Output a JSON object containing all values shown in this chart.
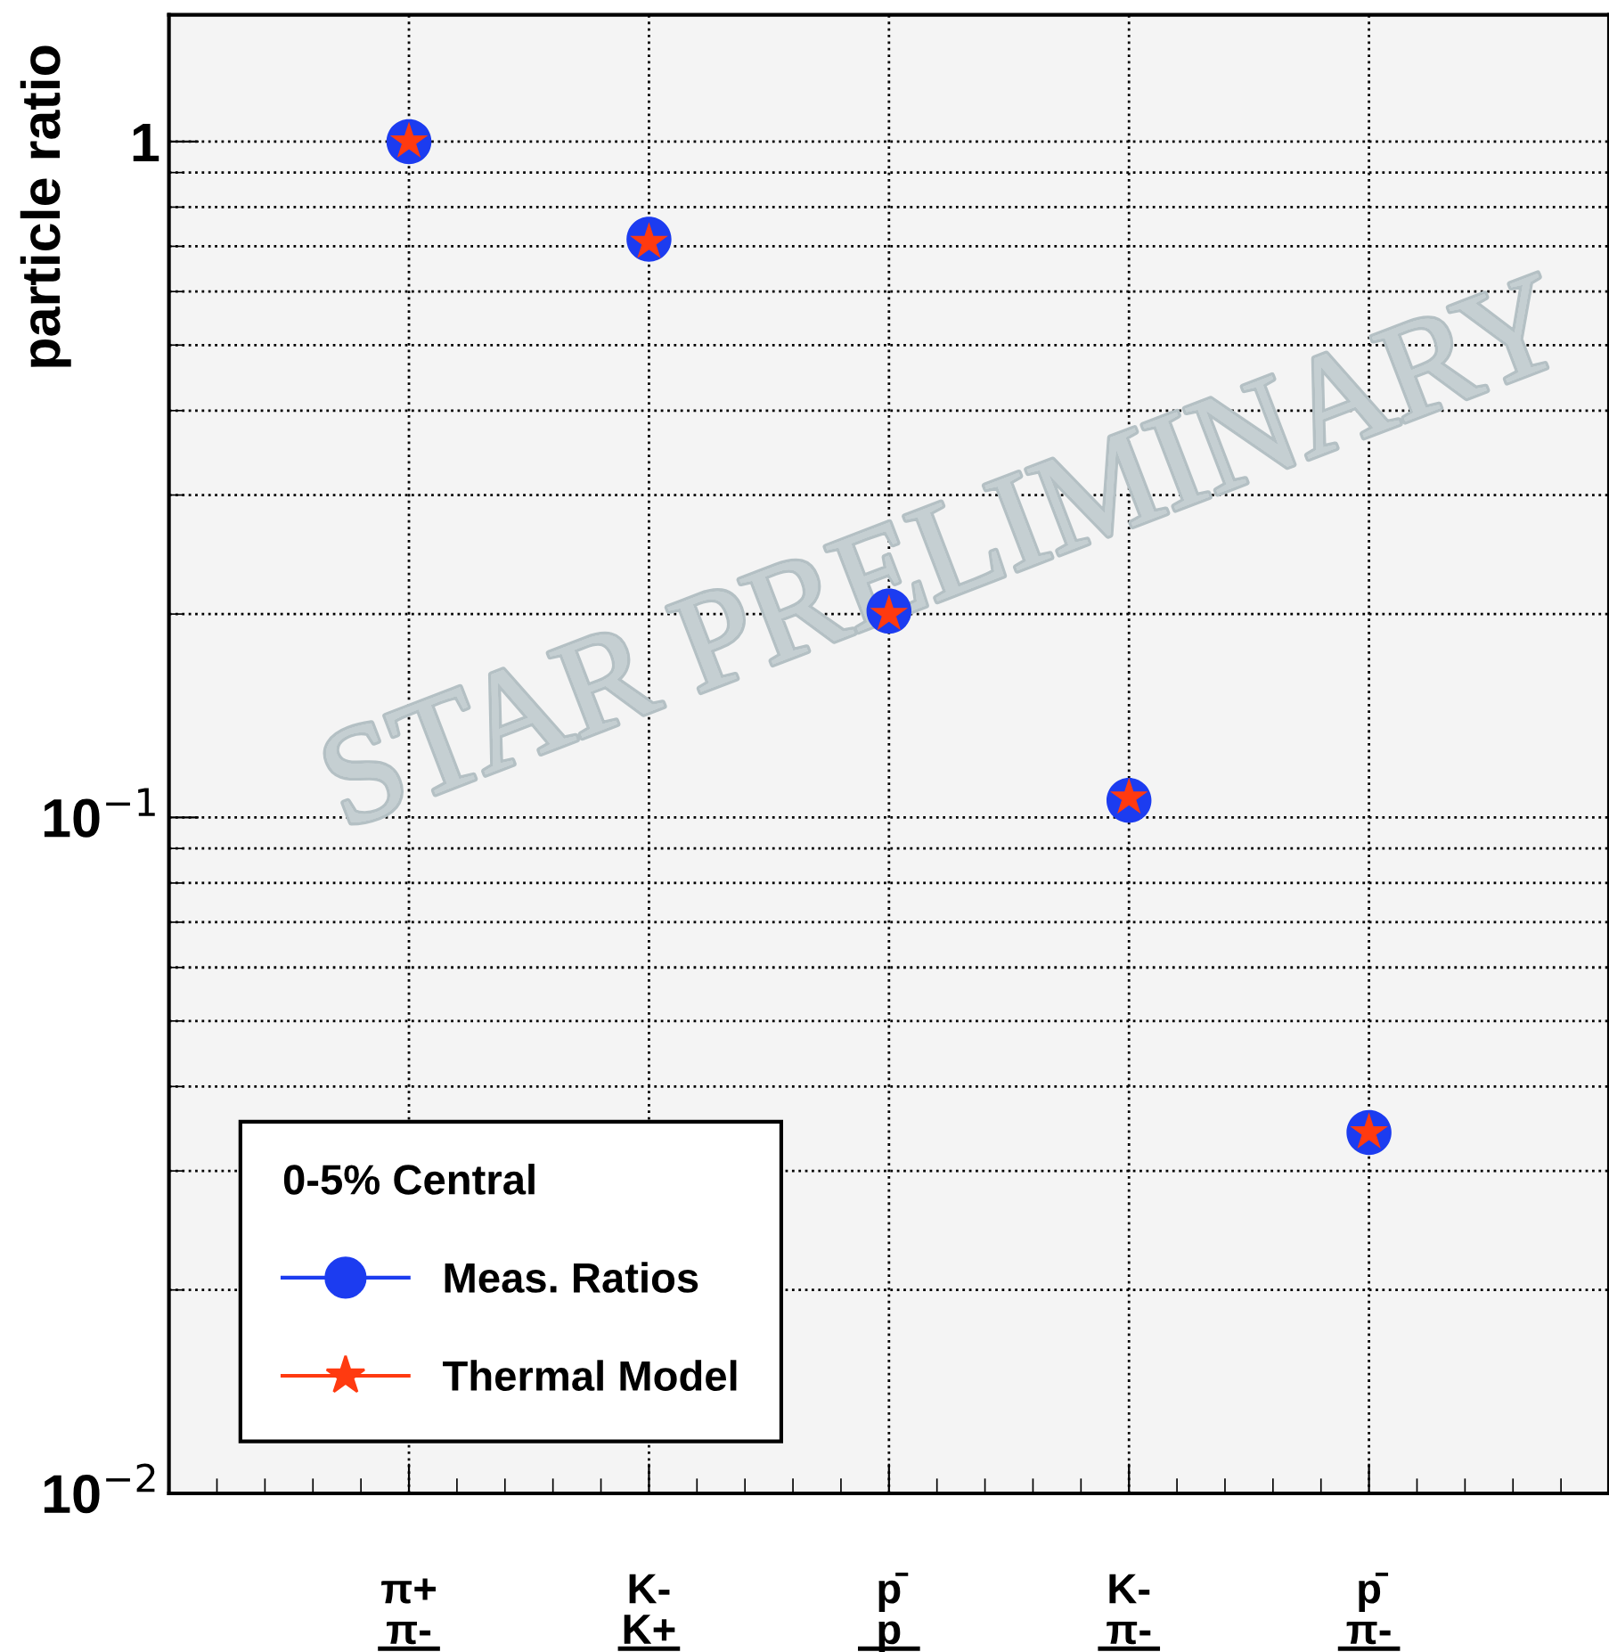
{
  "chart_data": {
    "type": "scatter",
    "ylabel": "particle ratio",
    "legend_title": "0-5% Central",
    "legend": "bottom left",
    "grid": true,
    "log": "y",
    "categories": [
      "π+\nπ-",
      "K-\nK+",
      "p̄\np",
      "K-\nπ-",
      "p̄\nπ-"
    ],
    "ylim": [
      0.01,
      1.54
    ],
    "yticks": [
      {
        "value": 0.01,
        "label": "10$^{−2}$"
      },
      {
        "value": 0.1,
        "label": "10$^{−1}$"
      },
      1
    ],
    "series": [
      {
        "name": "Meas. Ratios",
        "color": "#1c3cf0",
        "marker": "circle",
        "values": [
          1.0,
          0.717,
          0.202,
          0.106,
          0.0342
        ]
      },
      {
        "name": "Thermal Model",
        "color": "#ff3a10",
        "marker": "star",
        "values": [
          1.0,
          0.71,
          0.2,
          0.107,
          0.0342
        ]
      }
    ],
    "annotations": [
      "STAR PRELIMINARY"
    ]
  }
}
